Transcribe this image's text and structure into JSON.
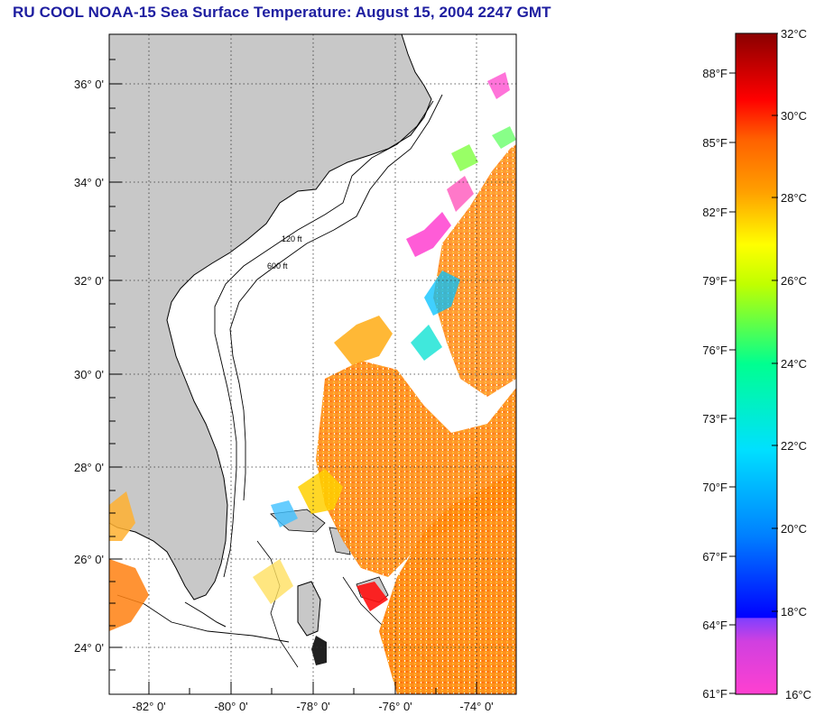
{
  "title": "RU COOL  NOAA-15  Sea Surface Temperature:  August 15, 2004 2247 GMT",
  "map": {
    "lat_labels": [
      "36° 0'",
      "34° 0'",
      "32° 0'",
      "30° 0'",
      "28° 0'",
      "26° 0'",
      "24° 0'"
    ],
    "lat_values": [
      36,
      34,
      32,
      30,
      28,
      26,
      24
    ],
    "lon_labels": [
      "-82° 0'",
      "-80° 0'",
      "-78° 0'",
      "-76° 0'",
      "-74° 0'"
    ],
    "lon_values": [
      -82,
      -80,
      -78,
      -76,
      -74
    ],
    "lat_range": [
      23,
      37
    ],
    "lon_range": [
      -83,
      -73
    ],
    "land_color": "#c8c8c8",
    "ocean_color": "#ffffff",
    "grid": "dotted",
    "contour_labels": [
      "120 ft",
      "600 ft"
    ]
  },
  "colorbar": {
    "fahrenheit_labels": [
      "88°F",
      "85°F",
      "82°F",
      "79°F",
      "76°F",
      "73°F",
      "70°F",
      "67°F",
      "64°F",
      "61°F"
    ],
    "celsius_labels": [
      "32°C",
      "30°C",
      "28°C",
      "26°C",
      "24°C",
      "22°C",
      "20°C",
      "18°C",
      "16°C"
    ],
    "stops": [
      "#ff40d0",
      "#d040e0",
      "#8040ff",
      "#0000ff",
      "#0080ff",
      "#00e0ff",
      "#00ff90",
      "#80ff00",
      "#ffff00",
      "#ffa000",
      "#ff6000",
      "#ff0000",
      "#900000"
    ]
  }
}
